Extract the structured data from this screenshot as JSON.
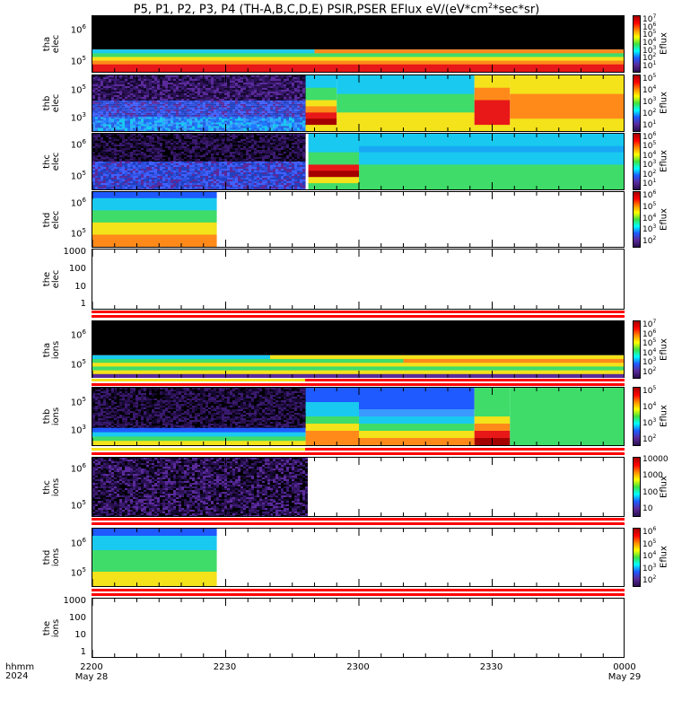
{
  "title": "P5, P1, P2, P3, P4 (TH-A,B,C,D,E) PSIR,PSER EFlux eV/(eV*cm",
  "title_sup": "2",
  "title_tail": "*sec*sr)",
  "colorbar_label": "Eflux",
  "x_axis": {
    "row1_label": "hhmm",
    "row2_label": "2024",
    "ticks": [
      {
        "time": "2200",
        "date": "May 28"
      },
      {
        "time": "2230",
        "date": ""
      },
      {
        "time": "2300",
        "date": ""
      },
      {
        "time": "2330",
        "date": ""
      },
      {
        "time": "0000",
        "date": "May 29"
      }
    ]
  },
  "panels": [
    {
      "label1": "tha",
      "label2": "elec",
      "ytick_labels": [
        "10",
        "10"
      ],
      "ytick_exps": [
        "6",
        "5"
      ],
      "colorbar_ticks": [
        [
          "10",
          "7"
        ],
        [
          "10",
          "6"
        ],
        [
          "10",
          "5"
        ],
        [
          "10",
          "4"
        ],
        [
          "10",
          "3"
        ],
        [
          "10",
          "2"
        ],
        [
          "10",
          "1"
        ]
      ]
    },
    {
      "label1": "thb",
      "label2": "elec",
      "ytick_labels": [
        "10",
        "10"
      ],
      "ytick_exps": [
        "5",
        "3"
      ],
      "colorbar_ticks": [
        [
          "10",
          "5"
        ],
        [
          "10",
          "4"
        ],
        [
          "10",
          "3"
        ],
        [
          "10",
          "2"
        ],
        [
          "10",
          "1"
        ]
      ]
    },
    {
      "label1": "thc",
      "label2": "elec",
      "ytick_labels": [
        "10",
        "10"
      ],
      "ytick_exps": [
        "6",
        "5"
      ],
      "colorbar_ticks": [
        [
          "10",
          "6"
        ],
        [
          "10",
          "5"
        ],
        [
          "10",
          "4"
        ],
        [
          "10",
          "3"
        ],
        [
          "10",
          "2"
        ],
        [
          "10",
          "1"
        ]
      ]
    },
    {
      "label1": "thd",
      "label2": "elec",
      "ytick_labels": [
        "10",
        "10"
      ],
      "ytick_exps": [
        "6",
        "5"
      ],
      "colorbar_ticks": [
        [
          "10",
          "6"
        ],
        [
          "10",
          "5"
        ],
        [
          "10",
          "4"
        ],
        [
          "10",
          "3"
        ],
        [
          "10",
          "2"
        ]
      ]
    },
    {
      "label1": "the",
      "label2": "elec",
      "ytick_values": [
        "1000",
        "100",
        "10",
        "1"
      ]
    },
    {
      "label1": "tha",
      "label2": "ions",
      "ytick_labels": [
        "10",
        "10"
      ],
      "ytick_exps": [
        "6",
        "5"
      ],
      "colorbar_ticks": [
        [
          "10",
          "7"
        ],
        [
          "10",
          "6"
        ],
        [
          "10",
          "5"
        ],
        [
          "10",
          "4"
        ],
        [
          "10",
          "3"
        ],
        [
          "10",
          "2"
        ]
      ]
    },
    {
      "label1": "thb",
      "label2": "ions",
      "ytick_labels": [
        "10",
        "10"
      ],
      "ytick_exps": [
        "5",
        "3"
      ],
      "colorbar_ticks": [
        [
          "10",
          "5"
        ],
        [
          "10",
          "4"
        ],
        [
          "10",
          "3"
        ],
        [
          "10",
          "2"
        ]
      ]
    },
    {
      "label1": "thc",
      "label2": "ions",
      "ytick_labels": [
        "10",
        "10"
      ],
      "ytick_exps": [
        "6",
        "5"
      ],
      "colorbar_ticks": [
        [
          "10000",
          ""
        ],
        [
          "1000",
          ""
        ],
        [
          "100",
          ""
        ],
        [
          "10",
          ""
        ]
      ]
    },
    {
      "label1": "thd",
      "label2": "ions",
      "ytick_labels": [
        "10",
        "10"
      ],
      "ytick_exps": [
        "6",
        "5"
      ],
      "colorbar_ticks": [
        [
          "10",
          "6"
        ],
        [
          "10",
          "5"
        ],
        [
          "10",
          "4"
        ],
        [
          "10",
          "3"
        ],
        [
          "10",
          "2"
        ]
      ]
    },
    {
      "label1": "the",
      "label2": "ions",
      "ytick_values": [
        "1000",
        "100",
        "10",
        "1"
      ]
    }
  ],
  "chart_data": {
    "type": "heatmap",
    "title": "P5, P1, P2, P3, P4 (TH-A,B,C,D,E) PSIR,PSER EFlux eV/(eV*cm2*sec*sr)",
    "x_range": [
      "2024-05-28 22:00",
      "2024-05-29 00:00"
    ],
    "x_ticks": [
      "2200",
      "2230",
      "2300",
      "2330",
      "0000"
    ],
    "colorbar_label": "Eflux",
    "colors": {
      "black": "#000000",
      "purple": "#5a2a9a",
      "blue": "#1e5aff",
      "cyan": "#19c9f0",
      "green": "#3fdc6a",
      "yellow": "#f4e21a",
      "orange": "#ff8a1a",
      "red": "#e81818",
      "darkred": "#a40000"
    },
    "series": [
      {
        "probe": "tha",
        "species": "elec",
        "coverage": "full"
      },
      {
        "probe": "thb",
        "species": "elec",
        "coverage": "full"
      },
      {
        "probe": "thc",
        "species": "elec",
        "coverage": "full"
      },
      {
        "probe": "thd",
        "species": "elec",
        "coverage": "2200-2228"
      },
      {
        "probe": "the",
        "species": "elec",
        "coverage": "none"
      },
      {
        "probe": "tha",
        "species": "ions",
        "coverage": "full"
      },
      {
        "probe": "thb",
        "species": "ions",
        "coverage": "full"
      },
      {
        "probe": "thc",
        "species": "ions",
        "coverage": "2200-2248"
      },
      {
        "probe": "thd",
        "species": "ions",
        "coverage": "2200-2228"
      },
      {
        "probe": "the",
        "species": "ions",
        "coverage": "none"
      }
    ]
  }
}
